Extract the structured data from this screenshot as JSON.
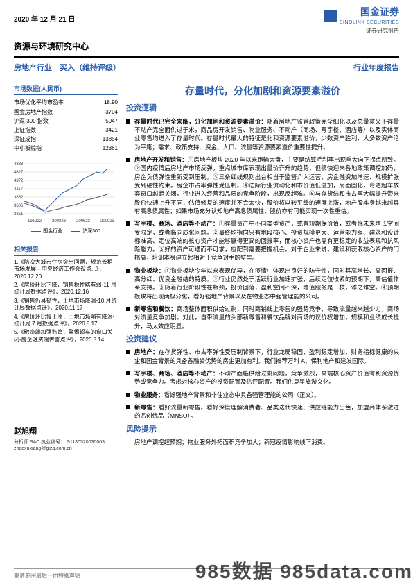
{
  "header": {
    "date": "2020 年 12 月 21 日",
    "logo_main": "国金证券",
    "logo_sub": "SINOLINK SECURITIES",
    "logo_sub2": "证券研究报告",
    "center": "资源与环境研究中心",
    "industry_left": "房地产行业　买入（维持评级）",
    "industry_right": "行业年度报告"
  },
  "market_data": {
    "title": "市场数据(人民币)",
    "rows": [
      {
        "label": "市场优化平均市盈率",
        "value": "18.90"
      },
      {
        "label": "国金房地产指数",
        "value": "3704"
      },
      {
        "label": "沪深 300 指数",
        "value": "5047"
      },
      {
        "label": "上证指数",
        "value": "3421"
      },
      {
        "label": "深证成指",
        "value": "13854"
      },
      {
        "label": "中小板综指",
        "value": "12361"
      }
    ]
  },
  "chart": {
    "y_ticks": [
      "4883",
      "4627",
      "4372",
      "4117",
      "3862",
      "3606",
      "3351"
    ],
    "x_ticks": [
      "191222",
      "200323",
      "200623",
      "200923"
    ],
    "series1": {
      "name": "国金行业",
      "color": "#2a5caa"
    },
    "series2": {
      "name": "沪深300",
      "color": "#555555"
    },
    "line1_path": "M15,65 L25,68 L35,72 L45,75 L50,70 L60,60 L70,50 L80,45 L90,40 L100,30 L110,25 L120,20 L128,22 L135,15",
    "line2_path": "M15,62 L25,65 L35,70 L45,78 L55,75 L65,73 L75,70 L85,68 L95,65 L105,60 L115,58 L125,55 L135,52",
    "grid_color": "#cccccc",
    "width": 150,
    "height": 95
  },
  "related": {
    "title": "相关报告",
    "items": [
      "1.《防次大城市住房突出问题，规范长租市场发展—中央经济工作会议点...》，2020.12.20",
      "2.《房价环比下降，销售稳性略有弱-11 月统计局数据点评》，2020.12.16",
      "3.《销售仍具韧性，土地市场降温-10 月统计局数据点评》，2020.11.17",
      "4.《房价环比慢上涨，土地市场略有降温-统计局 7 月数据点评》，2020.8.17",
      "5.《融资端加强监管，警惕超车的窗口关闭-房企融资端传言点评》，2020.8.14"
    ]
  },
  "analyst": {
    "name": "赵旭翔",
    "cert_label": "分析师 SAC 执业编号：",
    "cert": "S1130520030003",
    "email": "zhaoxuxiang@gjzq.com.cn"
  },
  "content": {
    "main_title": "存量时代，分化加剧和资源要素溢价",
    "sec1": "投资逻辑",
    "b1_lead": "存量时代已完全来临，分化加剧和资源要素溢价：",
    "b1_body": "随着房地产监管政策完全细化以及总量意义下存量不动产完全面供过于求，商品房开发销售、物业服务、不动产（商场、写字楼、酒店等）以及实体商业零售均进入了存量时代。存量时代最大的特征是化和资源要素溢价，少数资产胜利、大多数资产沦为平庸；需求、政策支持、资金、人口、流量等资源要素溢价重要性提升。",
    "b2_lead": "房地产开发和销售：",
    "b2_body": "①房地产板块 2020 年以来跑输大盘，主要是结算毛利率出现重大向下拐点所致。②国内疫情后房地产市场反弹，重点城市库表现出量价齐升的趋势，但很快迎来各地政策调控加码，房企负债弹性重新受到压制。③三条红线规则出台相当于监管介入运营，房企融资加增速、规模扩张受到硬性约束。房企市占率弹性受压制。④边际行业流动化和市价值低溢加，局面固化，弯道超车放弃窗口越趋关闭，行业进入经营和品质的竞争阶段，出现反超难。⑤与存货结和市占率大幅提升带来股价快速上升不同，估值修复的速度并不会太快，股价将以较平缓的速度上涨，地产股本身越来越具有高息债属性；如果市场充分认知地产高息债属性，股价亦有可能实现一次性重估。",
    "b3_lead": "写字楼、商场、酒店等不动产：",
    "b3_body": "①存量资产中不同类型资产，或有短期保价值，或者临未来增长空间受限定，或者临同质化问题。②最终均指向只有地段核心、投资规模更大、运营能力强、建筑和设计标准高、定位高端的核心资产才能够赢得更高的回报率，而核心资产也需有更稳定的收益表现和抗风险能力。③好的资产可遇而不可求，应配到需要把握机会。对于企业来说，建设和获取核心资产的门槛高，培训本身建立起相对于竞争对手的壁垒。",
    "b4_lead": "物业板块：",
    "b4_body": "①物业板块今年以来表现优异，在疫情中体现出良好的防守性，同时其高增长、高回报、高分红、优良金融结的特质。②行业仍然处于活跃行业加速扩张，后续定位收紧的预期下，高估值体系支持。③随着行业阶段性在瓶颈，投价回落，盈利空间不深，增值服务是一枝，难之难空。④预期板块将出现两极分化，看好强地产背景以及在物业态中强管理能的公司。",
    "b5_lead": "新零售和餐饮：",
    "b5_body": "商场整体面积供给过剩，同时商铺线上零售的强势竞争，导致流量越来越少力，商场对流量竞争加剧。对此，自带流量的头部新零售和餐饮品牌对商场的议价权增加，规模和业绩成长提升，马太效应明显。",
    "sec2": "投资建议",
    "adv1_lead": "房地产：",
    "adv1_body": "在存货弹性、市占率弹性受压制背景下，行业龙局稳固，盈利稳定增加，财务指标健康的央企和国金背景的具备各融资优势的房企更加有利。我们推荐万科 A、保利地产和建发国际。",
    "adv2_lead": "写字楼、商场、酒店等不动产：",
    "adv2_body": "不动产面临供给过剩问题，竞争激烈，高端核心资产价值有利资源优势或竞争力。考虑对核心资产的投资配置及估评配置。我们供复星旅游文化。",
    "adv3_lead": "物业服务：",
    "adv3_body": "看好强地产背景和非住业态中具备强管理能的公司（正文）。",
    "adv4_lead": "新零售：",
    "adv4_body": "看好流量新零售。看好深度理解消费者、品类迭代快速、供应链能力出色，加盟商体系激进的名创优品（MNSO）。",
    "sec3": "风险提示",
    "risk": "房地产调控超预期；物业服务外拓面积竞争加大；新冠疫情影响线下消费。"
  },
  "footer": {
    "disclaimer": "敬请参阅最后一页特别声明",
    "watermark": "985数据 985data.com"
  }
}
